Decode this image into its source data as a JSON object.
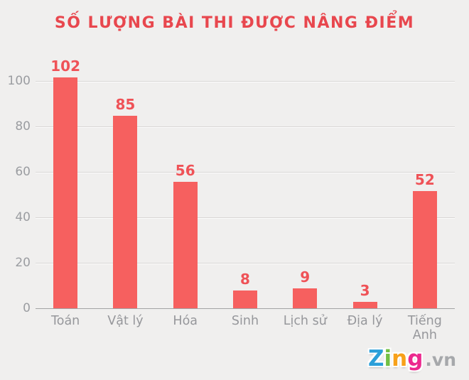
{
  "title": "SỐ LƯỢNG BÀI THI ĐƯỢC NÂNG ĐIỂM",
  "chart_data": {
    "type": "bar",
    "categories": [
      "Toán",
      "Vật lý",
      "Hóa",
      "Sinh",
      "Lịch sử",
      "Địa lý",
      "Tiếng Anh"
    ],
    "values": [
      102,
      85,
      56,
      8,
      9,
      3,
      52
    ],
    "title": "SỐ LƯỢNG BÀI THI ĐƯỢC NÂNG ĐIỂM",
    "xlabel": "",
    "ylabel": "",
    "ylim": [
      0,
      100
    ],
    "yticks": [
      0,
      20,
      40,
      60,
      80,
      100
    ],
    "grid": true,
    "legend": "none",
    "value_labels_shown": true
  },
  "colors": {
    "background": "#f0efee",
    "bar": "#f6605f",
    "title_text": "#e8474e",
    "value_label_text": "#ef5257",
    "y_axis_text": "#9b9da1",
    "x_axis_text": "#96979b",
    "gridline": "#d8d6d5",
    "baseline": "#a3a3a4"
  },
  "watermark": {
    "brand_letters": [
      {
        "char": "Z",
        "color": "#2b9fd9"
      },
      {
        "char": "i",
        "color": "#72bf44"
      },
      {
        "char": "n",
        "color": "#f7a11a"
      },
      {
        "char": "g",
        "color": "#ec298e"
      }
    ],
    "suffix": ".vn",
    "suffix_color": "#a6a8ab"
  }
}
